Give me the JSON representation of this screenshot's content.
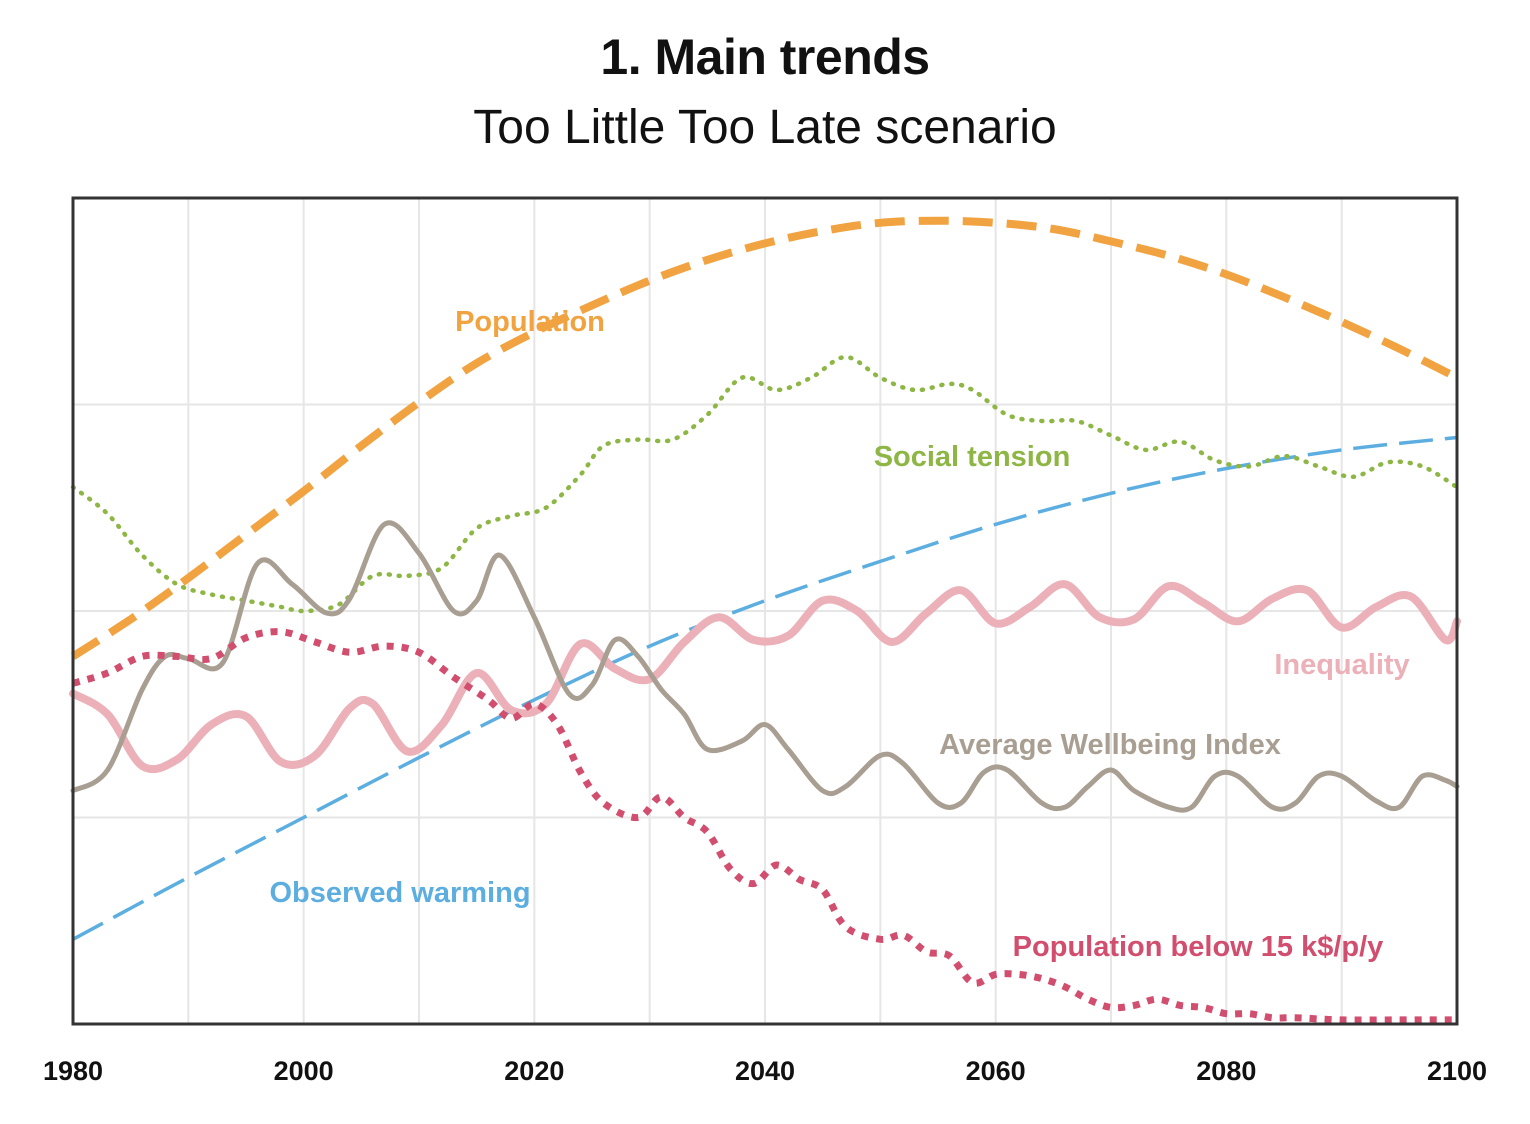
{
  "chart_data": {
    "type": "line",
    "title": "1. Main trends",
    "subtitle": "Too Little Too Late scenario",
    "xlabel": "",
    "ylabel": "",
    "xlim": [
      1980,
      2100
    ],
    "ylim": [
      0,
      4
    ],
    "x_ticks": [
      1980,
      2000,
      2020,
      2040,
      2060,
      2080,
      2100
    ],
    "grid": true,
    "legend": "inline labels",
    "series": [
      {
        "name": "Population",
        "color": "#F0A340",
        "style": "dashed-thick",
        "points": [
          [
            1980,
            1.78
          ],
          [
            1985,
            1.96
          ],
          [
            1990,
            2.16
          ],
          [
            1995,
            2.37
          ],
          [
            2000,
            2.58
          ],
          [
            2005,
            2.8
          ],
          [
            2010,
            3.01
          ],
          [
            2015,
            3.2
          ],
          [
            2020,
            3.35
          ],
          [
            2025,
            3.48
          ],
          [
            2030,
            3.6
          ],
          [
            2035,
            3.7
          ],
          [
            2040,
            3.78
          ],
          [
            2045,
            3.84
          ],
          [
            2050,
            3.88
          ],
          [
            2055,
            3.89
          ],
          [
            2060,
            3.88
          ],
          [
            2065,
            3.85
          ],
          [
            2070,
            3.79
          ],
          [
            2075,
            3.72
          ],
          [
            2080,
            3.63
          ],
          [
            2085,
            3.52
          ],
          [
            2090,
            3.4
          ],
          [
            2095,
            3.27
          ],
          [
            2100,
            3.13
          ]
        ]
      },
      {
        "name": "Social tension",
        "color": "#8DB644",
        "style": "dotted",
        "points": [
          [
            1980,
            2.6
          ],
          [
            1983,
            2.47
          ],
          [
            1986,
            2.27
          ],
          [
            1989,
            2.13
          ],
          [
            1992,
            2.08
          ],
          [
            1995,
            2.05
          ],
          [
            1998,
            2.02
          ],
          [
            2000,
            2
          ],
          [
            2003,
            2.03
          ],
          [
            2006,
            2.17
          ],
          [
            2009,
            2.17
          ],
          [
            2012,
            2.21
          ],
          [
            2015,
            2.4
          ],
          [
            2018,
            2.46
          ],
          [
            2021,
            2.5
          ],
          [
            2024,
            2.66
          ],
          [
            2026,
            2.8
          ],
          [
            2029,
            2.83
          ],
          [
            2032,
            2.83
          ],
          [
            2035,
            2.95
          ],
          [
            2038,
            3.13
          ],
          [
            2041,
            3.07
          ],
          [
            2044,
            3.13
          ],
          [
            2047,
            3.23
          ],
          [
            2050,
            3.13
          ],
          [
            2053,
            3.07
          ],
          [
            2056,
            3.1
          ],
          [
            2058,
            3.07
          ],
          [
            2061,
            2.95
          ],
          [
            2064,
            2.92
          ],
          [
            2067,
            2.92
          ],
          [
            2070,
            2.85
          ],
          [
            2073,
            2.78
          ],
          [
            2076,
            2.82
          ],
          [
            2079,
            2.73
          ],
          [
            2082,
            2.7
          ],
          [
            2085,
            2.75
          ],
          [
            2088,
            2.7
          ],
          [
            2091,
            2.65
          ],
          [
            2094,
            2.72
          ],
          [
            2097,
            2.7
          ],
          [
            2100,
            2.6
          ]
        ]
      },
      {
        "name": "Observed warming",
        "color": "#5DAEE0",
        "style": "dashed-thin",
        "points": [
          [
            1980,
            0.41
          ],
          [
            1990,
            0.71
          ],
          [
            2000,
            1.0
          ],
          [
            2010,
            1.29
          ],
          [
            2020,
            1.57
          ],
          [
            2030,
            1.83
          ],
          [
            2040,
            2.05
          ],
          [
            2050,
            2.24
          ],
          [
            2060,
            2.42
          ],
          [
            2070,
            2.57
          ],
          [
            2080,
            2.69
          ],
          [
            2090,
            2.78
          ],
          [
            2100,
            2.84
          ]
        ]
      },
      {
        "name": "Inequality",
        "color": "#EBB0B8",
        "style": "solid-thick",
        "points": [
          [
            1980,
            1.6
          ],
          [
            1983,
            1.5
          ],
          [
            1986,
            1.25
          ],
          [
            1989,
            1.28
          ],
          [
            1992,
            1.45
          ],
          [
            1995,
            1.49
          ],
          [
            1998,
            1.27
          ],
          [
            2001,
            1.3
          ],
          [
            2004,
            1.53
          ],
          [
            2006,
            1.55
          ],
          [
            2009,
            1.32
          ],
          [
            2012,
            1.45
          ],
          [
            2015,
            1.7
          ],
          [
            2018,
            1.52
          ],
          [
            2021,
            1.55
          ],
          [
            2024,
            1.84
          ],
          [
            2027,
            1.72
          ],
          [
            2030,
            1.67
          ],
          [
            2033,
            1.85
          ],
          [
            2036,
            1.97
          ],
          [
            2039,
            1.86
          ],
          [
            2042,
            1.88
          ],
          [
            2045,
            2.05
          ],
          [
            2048,
            2
          ],
          [
            2051,
            1.85
          ],
          [
            2054,
            1.99
          ],
          [
            2057,
            2.1
          ],
          [
            2060,
            1.94
          ],
          [
            2063,
            2.02
          ],
          [
            2066,
            2.13
          ],
          [
            2069,
            1.97
          ],
          [
            2072,
            1.96
          ],
          [
            2075,
            2.12
          ],
          [
            2078,
            2.04
          ],
          [
            2081,
            1.95
          ],
          [
            2084,
            2.06
          ],
          [
            2087,
            2.1
          ],
          [
            2090,
            1.92
          ],
          [
            2093,
            2.02
          ],
          [
            2096,
            2.07
          ],
          [
            2099,
            1.86
          ],
          [
            2100,
            1.95
          ]
        ]
      },
      {
        "name": "Average Wellbeing Index",
        "color": "#A89E92",
        "style": "solid",
        "points": [
          [
            1980,
            1.13
          ],
          [
            1983,
            1.23
          ],
          [
            1986,
            1.62
          ],
          [
            1988,
            1.78
          ],
          [
            1990,
            1.77
          ],
          [
            1993,
            1.75
          ],
          [
            1996,
            2.23
          ],
          [
            1999,
            2.13
          ],
          [
            2002,
            1.99
          ],
          [
            2004,
            2.06
          ],
          [
            2007,
            2.42
          ],
          [
            2010,
            2.28
          ],
          [
            2013,
            2.0
          ],
          [
            2015,
            2.05
          ],
          [
            2017,
            2.27
          ],
          [
            2020,
            1.97
          ],
          [
            2023,
            1.6
          ],
          [
            2025,
            1.64
          ],
          [
            2027,
            1.86
          ],
          [
            2029,
            1.78
          ],
          [
            2031,
            1.62
          ],
          [
            2033,
            1.5
          ],
          [
            2035,
            1.33
          ],
          [
            2038,
            1.37
          ],
          [
            2040,
            1.45
          ],
          [
            2042,
            1.33
          ],
          [
            2045,
            1.13
          ],
          [
            2047,
            1.15
          ],
          [
            2050,
            1.3
          ],
          [
            2052,
            1.26
          ],
          [
            2055,
            1.07
          ],
          [
            2057,
            1.07
          ],
          [
            2059,
            1.22
          ],
          [
            2061,
            1.23
          ],
          [
            2064,
            1.07
          ],
          [
            2066,
            1.05
          ],
          [
            2068,
            1.15
          ],
          [
            2070,
            1.23
          ],
          [
            2072,
            1.13
          ],
          [
            2075,
            1.05
          ],
          [
            2077,
            1.05
          ],
          [
            2079,
            1.2
          ],
          [
            2081,
            1.2
          ],
          [
            2084,
            1.05
          ],
          [
            2086,
            1.07
          ],
          [
            2088,
            1.2
          ],
          [
            2090,
            1.2
          ],
          [
            2093,
            1.08
          ],
          [
            2095,
            1.05
          ],
          [
            2097,
            1.2
          ],
          [
            2099,
            1.18
          ],
          [
            2100,
            1.15
          ]
        ]
      },
      {
        "name": "Population below 15 k$/p/y",
        "color": "#D24E6E",
        "style": "dotted-thick",
        "points": [
          [
            1980,
            1.65
          ],
          [
            1983,
            1.7
          ],
          [
            1986,
            1.78
          ],
          [
            1989,
            1.78
          ],
          [
            1992,
            1.77
          ],
          [
            1995,
            1.87
          ],
          [
            1998,
            1.9
          ],
          [
            2001,
            1.85
          ],
          [
            2004,
            1.8
          ],
          [
            2007,
            1.83
          ],
          [
            2010,
            1.8
          ],
          [
            2013,
            1.68
          ],
          [
            2016,
            1.57
          ],
          [
            2018,
            1.48
          ],
          [
            2020,
            1.55
          ],
          [
            2022,
            1.45
          ],
          [
            2024,
            1.22
          ],
          [
            2026,
            1.07
          ],
          [
            2029,
            1.0
          ],
          [
            2031,
            1.1
          ],
          [
            2033,
            1.0
          ],
          [
            2035,
            0.93
          ],
          [
            2037,
            0.75
          ],
          [
            2039,
            0.68
          ],
          [
            2041,
            0.77
          ],
          [
            2043,
            0.7
          ],
          [
            2045,
            0.65
          ],
          [
            2047,
            0.47
          ],
          [
            2050,
            0.41
          ],
          [
            2052,
            0.43
          ],
          [
            2054,
            0.35
          ],
          [
            2056,
            0.33
          ],
          [
            2058,
            0.2
          ],
          [
            2060,
            0.24
          ],
          [
            2062,
            0.24
          ],
          [
            2064,
            0.22
          ],
          [
            2066,
            0.18
          ],
          [
            2068,
            0.12
          ],
          [
            2070,
            0.08
          ],
          [
            2072,
            0.09
          ],
          [
            2074,
            0.12
          ],
          [
            2076,
            0.09
          ],
          [
            2078,
            0.08
          ],
          [
            2080,
            0.05
          ],
          [
            2082,
            0.05
          ],
          [
            2084,
            0.03
          ],
          [
            2086,
            0.03
          ],
          [
            2090,
            0.02
          ],
          [
            2095,
            0.02
          ],
          [
            2100,
            0.02
          ]
        ]
      }
    ]
  }
}
